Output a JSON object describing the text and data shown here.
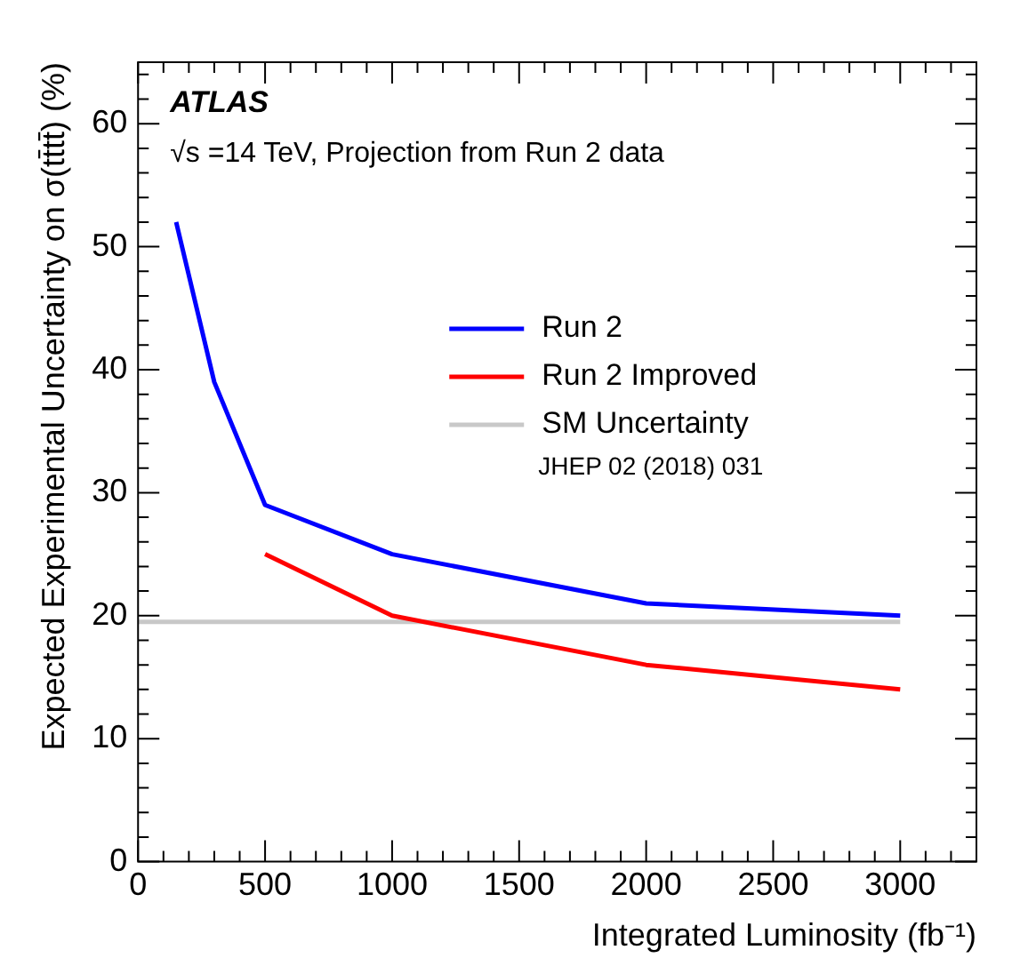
{
  "chart_data": {
    "type": "line",
    "xlabel": "Integrated Luminosity (fb⁻¹)",
    "ylabel": "Expected Experimental Uncertainty on σ(tt̄tt̄) (%)",
    "annotations": [
      "ATLAS",
      "√s =14 TeV, Projection from Run 2 data",
      "JHEP 02 (2018) 031"
    ],
    "series": [
      {
        "name": "Run 2",
        "color": "#0000ff",
        "x": [
          150,
          300,
          500,
          1000,
          2000,
          3000
        ],
        "values": [
          52,
          39,
          29,
          25,
          21,
          20
        ]
      },
      {
        "name": "Run 2 Improved",
        "color": "#ff0000",
        "x": [
          500,
          1000,
          2000,
          3000
        ],
        "values": [
          25,
          20,
          16,
          14
        ]
      },
      {
        "name": "SM Uncertainty",
        "color": "#c8c8c8",
        "x": [
          0,
          3000
        ],
        "values": [
          19.5,
          19.5
        ]
      }
    ],
    "xlim": [
      0,
      3300
    ],
    "xticks": [
      0,
      500,
      1000,
      1500,
      2000,
      2500,
      3000
    ],
    "ylim": [
      0,
      65
    ],
    "yticks": [
      0,
      10,
      20,
      30,
      40,
      50,
      60
    ],
    "grid": false,
    "legend": "right",
    "marker": "none",
    "line_style": "solid"
  }
}
